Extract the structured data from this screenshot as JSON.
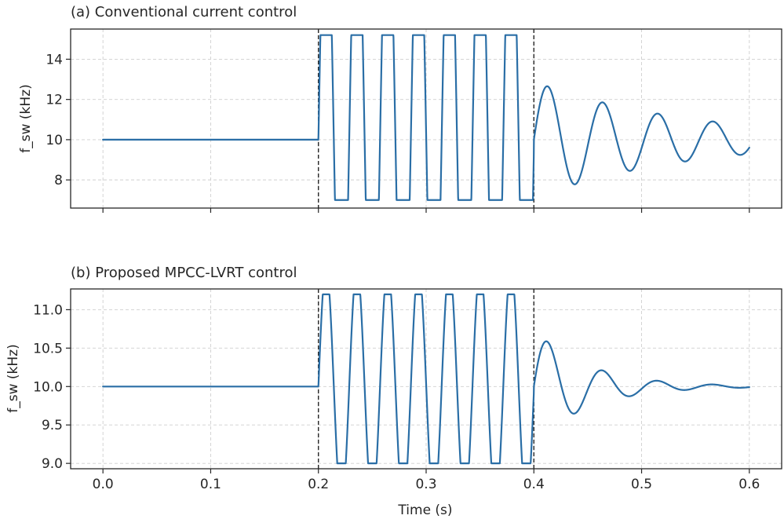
{
  "colors": {
    "series": "#2a6ea6",
    "axis": "#262626",
    "grid": "#cfcfcf"
  },
  "shared": {
    "xlabel": "Time (s)",
    "xlim": [
      -0.03,
      0.63
    ],
    "xticks": [
      0.0,
      0.1,
      0.2,
      0.3,
      0.4,
      0.5,
      0.6
    ],
    "xtick_labels": [
      "0.0",
      "0.1",
      "0.2",
      "0.3",
      "0.4",
      "0.5",
      "0.6"
    ],
    "vlines": [
      0.2,
      0.4
    ]
  },
  "chart_data": [
    {
      "type": "line",
      "title": "(a) Conventional current control",
      "xlabel": "",
      "ylabel": "f_sw (kHz)",
      "ylim": [
        6.6,
        15.5
      ],
      "yticks": [
        8,
        10,
        12,
        14
      ],
      "ytick_labels": [
        "8",
        "10",
        "12",
        "14"
      ],
      "grid": true,
      "series": [
        {
          "name": "f_sw",
          "segments": [
            {
              "kind": "constant",
              "from": 0.0,
              "to": 0.2,
              "value": 10.0
            },
            {
              "kind": "saturated_oscillation",
              "from": 0.2,
              "to": 0.4,
              "center": 10.0,
              "amplitude": 13.2,
              "period": 0.0286,
              "clip_min": 7.0,
              "clip_max": 15.2
            },
            {
              "kind": "damped_oscillation",
              "from": 0.4,
              "to": 0.6,
              "center": 10.0,
              "amplitude": 2.9,
              "period": 0.0512,
              "decay": 7.0
            }
          ],
          "values_summary": {
            "max": 15.2,
            "min": 7.0,
            "after_fault_first_peak": 12.75
          }
        }
      ]
    },
    {
      "type": "line",
      "title": "(b) Proposed MPCC-LVRT control",
      "xlabel": "Time (s)",
      "ylabel": "f_sw (kHz)",
      "ylim": [
        8.93,
        11.27
      ],
      "yticks": [
        9.0,
        9.5,
        10.0,
        10.5,
        11.0
      ],
      "ytick_labels": [
        "9.0",
        "9.5",
        "10.0",
        "10.5",
        "11.0"
      ],
      "grid": true,
      "series": [
        {
          "name": "f_sw",
          "segments": [
            {
              "kind": "constant",
              "from": 0.0,
              "to": 0.2,
              "value": 10.0
            },
            {
              "kind": "saturated_oscillation",
              "from": 0.2,
              "to": 0.4,
              "center": 10.0,
              "amplitude": 1.55,
              "period": 0.0286,
              "clip_min": 9.0,
              "clip_max": 11.2
            },
            {
              "kind": "damped_oscillation",
              "from": 0.4,
              "to": 0.6,
              "center": 10.0,
              "amplitude": 0.75,
              "period": 0.0512,
              "decay": 20.0
            }
          ],
          "values_summary": {
            "max": 11.2,
            "min": 9.0,
            "after_fault_first_peak": 10.63
          }
        }
      ]
    }
  ]
}
